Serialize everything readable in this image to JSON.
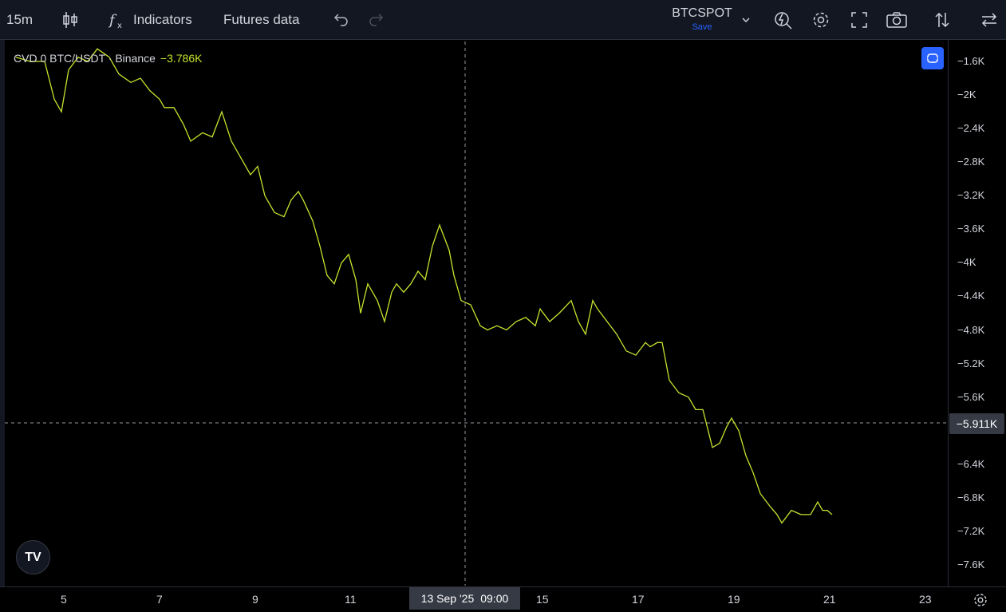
{
  "toolbar": {
    "interval": "15m",
    "indicators_label": "Indicators",
    "futures_label": "Futures data",
    "symbol": "BTCSPOT",
    "save_label": "Save"
  },
  "legend": {
    "title": "CVD 0 BTC/USDT · Binance",
    "value": "−3.786K"
  },
  "crosshair": {
    "price_label": "−5.911K",
    "date_label": "13 Sep '25",
    "time_label": "09:00"
  },
  "colors": {
    "line": "#c8e32e",
    "accent": "#2962ff",
    "background": "#000000"
  },
  "logo_text": "TV",
  "chart_data": {
    "type": "line",
    "title": "CVD 0 BTC/USDT · Binance",
    "y_ticks": [
      "-1.6K",
      "-2K",
      "-2.4K",
      "-2.8K",
      "-3.2K",
      "-3.6K",
      "-4K",
      "-4.4K",
      "-4.8K",
      "-5.2K",
      "-5.6K",
      "-6.4K",
      "-6.8K",
      "-7.2K",
      "-7.6K"
    ],
    "x_ticks": [
      "5",
      "7",
      "9",
      "11",
      "15",
      "17",
      "19",
      "21",
      "23"
    ],
    "ylim": [
      -7.8,
      -1.35
    ],
    "xlim": [
      4.0,
      24.0
    ],
    "series": [
      {
        "values_unit": "K",
        "x": [
          4.0,
          4.3,
          4.6,
          4.8,
          4.95,
          5.1,
          5.3,
          5.5,
          5.7,
          5.95,
          6.15,
          6.4,
          6.6,
          6.8,
          7.0,
          7.1,
          7.3,
          7.5,
          7.65,
          7.9,
          8.1,
          8.3,
          8.5,
          8.7,
          8.9,
          9.05,
          9.2,
          9.4,
          9.6,
          9.75,
          9.9,
          10.0,
          10.2,
          10.35,
          10.5,
          10.65,
          10.8,
          10.95,
          11.1,
          11.2,
          11.35,
          11.55,
          11.7,
          11.85,
          11.95,
          12.1,
          12.25,
          12.4,
          12.55,
          12.7,
          12.85,
          12.95,
          13.05,
          13.15,
          13.3,
          13.5,
          13.7,
          13.85,
          14.05,
          14.25,
          14.45,
          14.65,
          14.85,
          14.95,
          15.15,
          15.35,
          15.6,
          15.75,
          15.9,
          16.05,
          16.15,
          16.35,
          16.55,
          16.75,
          16.95,
          17.15,
          17.25,
          17.4,
          17.5,
          17.65,
          17.85,
          18.05,
          18.2,
          18.35,
          18.55,
          18.7,
          18.85,
          18.95,
          19.1,
          19.25,
          19.4,
          19.55,
          19.75,
          19.9,
          20.0,
          20.2,
          20.4,
          20.6,
          20.75,
          20.85,
          20.95,
          21.05
        ],
        "values": [
          -1.55,
          -1.6,
          -1.6,
          -2.05,
          -2.2,
          -1.7,
          -1.55,
          -1.6,
          -1.45,
          -1.55,
          -1.75,
          -1.85,
          -1.8,
          -1.95,
          -2.05,
          -2.15,
          -2.15,
          -2.35,
          -2.55,
          -2.45,
          -2.5,
          -2.2,
          -2.55,
          -2.75,
          -2.95,
          -2.85,
          -3.2,
          -3.4,
          -3.45,
          -3.25,
          -3.15,
          -3.25,
          -3.5,
          -3.8,
          -4.15,
          -4.25,
          -4.0,
          -3.9,
          -4.2,
          -4.6,
          -4.25,
          -4.45,
          -4.7,
          -4.35,
          -4.25,
          -4.35,
          -4.25,
          -4.1,
          -4.2,
          -3.8,
          -3.55,
          -3.7,
          -3.85,
          -4.15,
          -4.45,
          -4.5,
          -4.75,
          -4.8,
          -4.75,
          -4.8,
          -4.7,
          -4.65,
          -4.75,
          -4.55,
          -4.7,
          -4.6,
          -4.45,
          -4.7,
          -4.85,
          -4.45,
          -4.55,
          -4.7,
          -4.85,
          -5.05,
          -5.1,
          -4.95,
          -5.0,
          -4.95,
          -4.95,
          -5.4,
          -5.55,
          -5.6,
          -5.75,
          -5.75,
          -6.2,
          -6.15,
          -5.95,
          -5.85,
          -6.0,
          -6.3,
          -6.5,
          -6.75,
          -6.9,
          -7.0,
          -7.1,
          -6.95,
          -7.0,
          -7.0,
          -6.85,
          -6.95,
          -6.95,
          -7.0
        ]
      }
    ],
    "grid": false
  }
}
